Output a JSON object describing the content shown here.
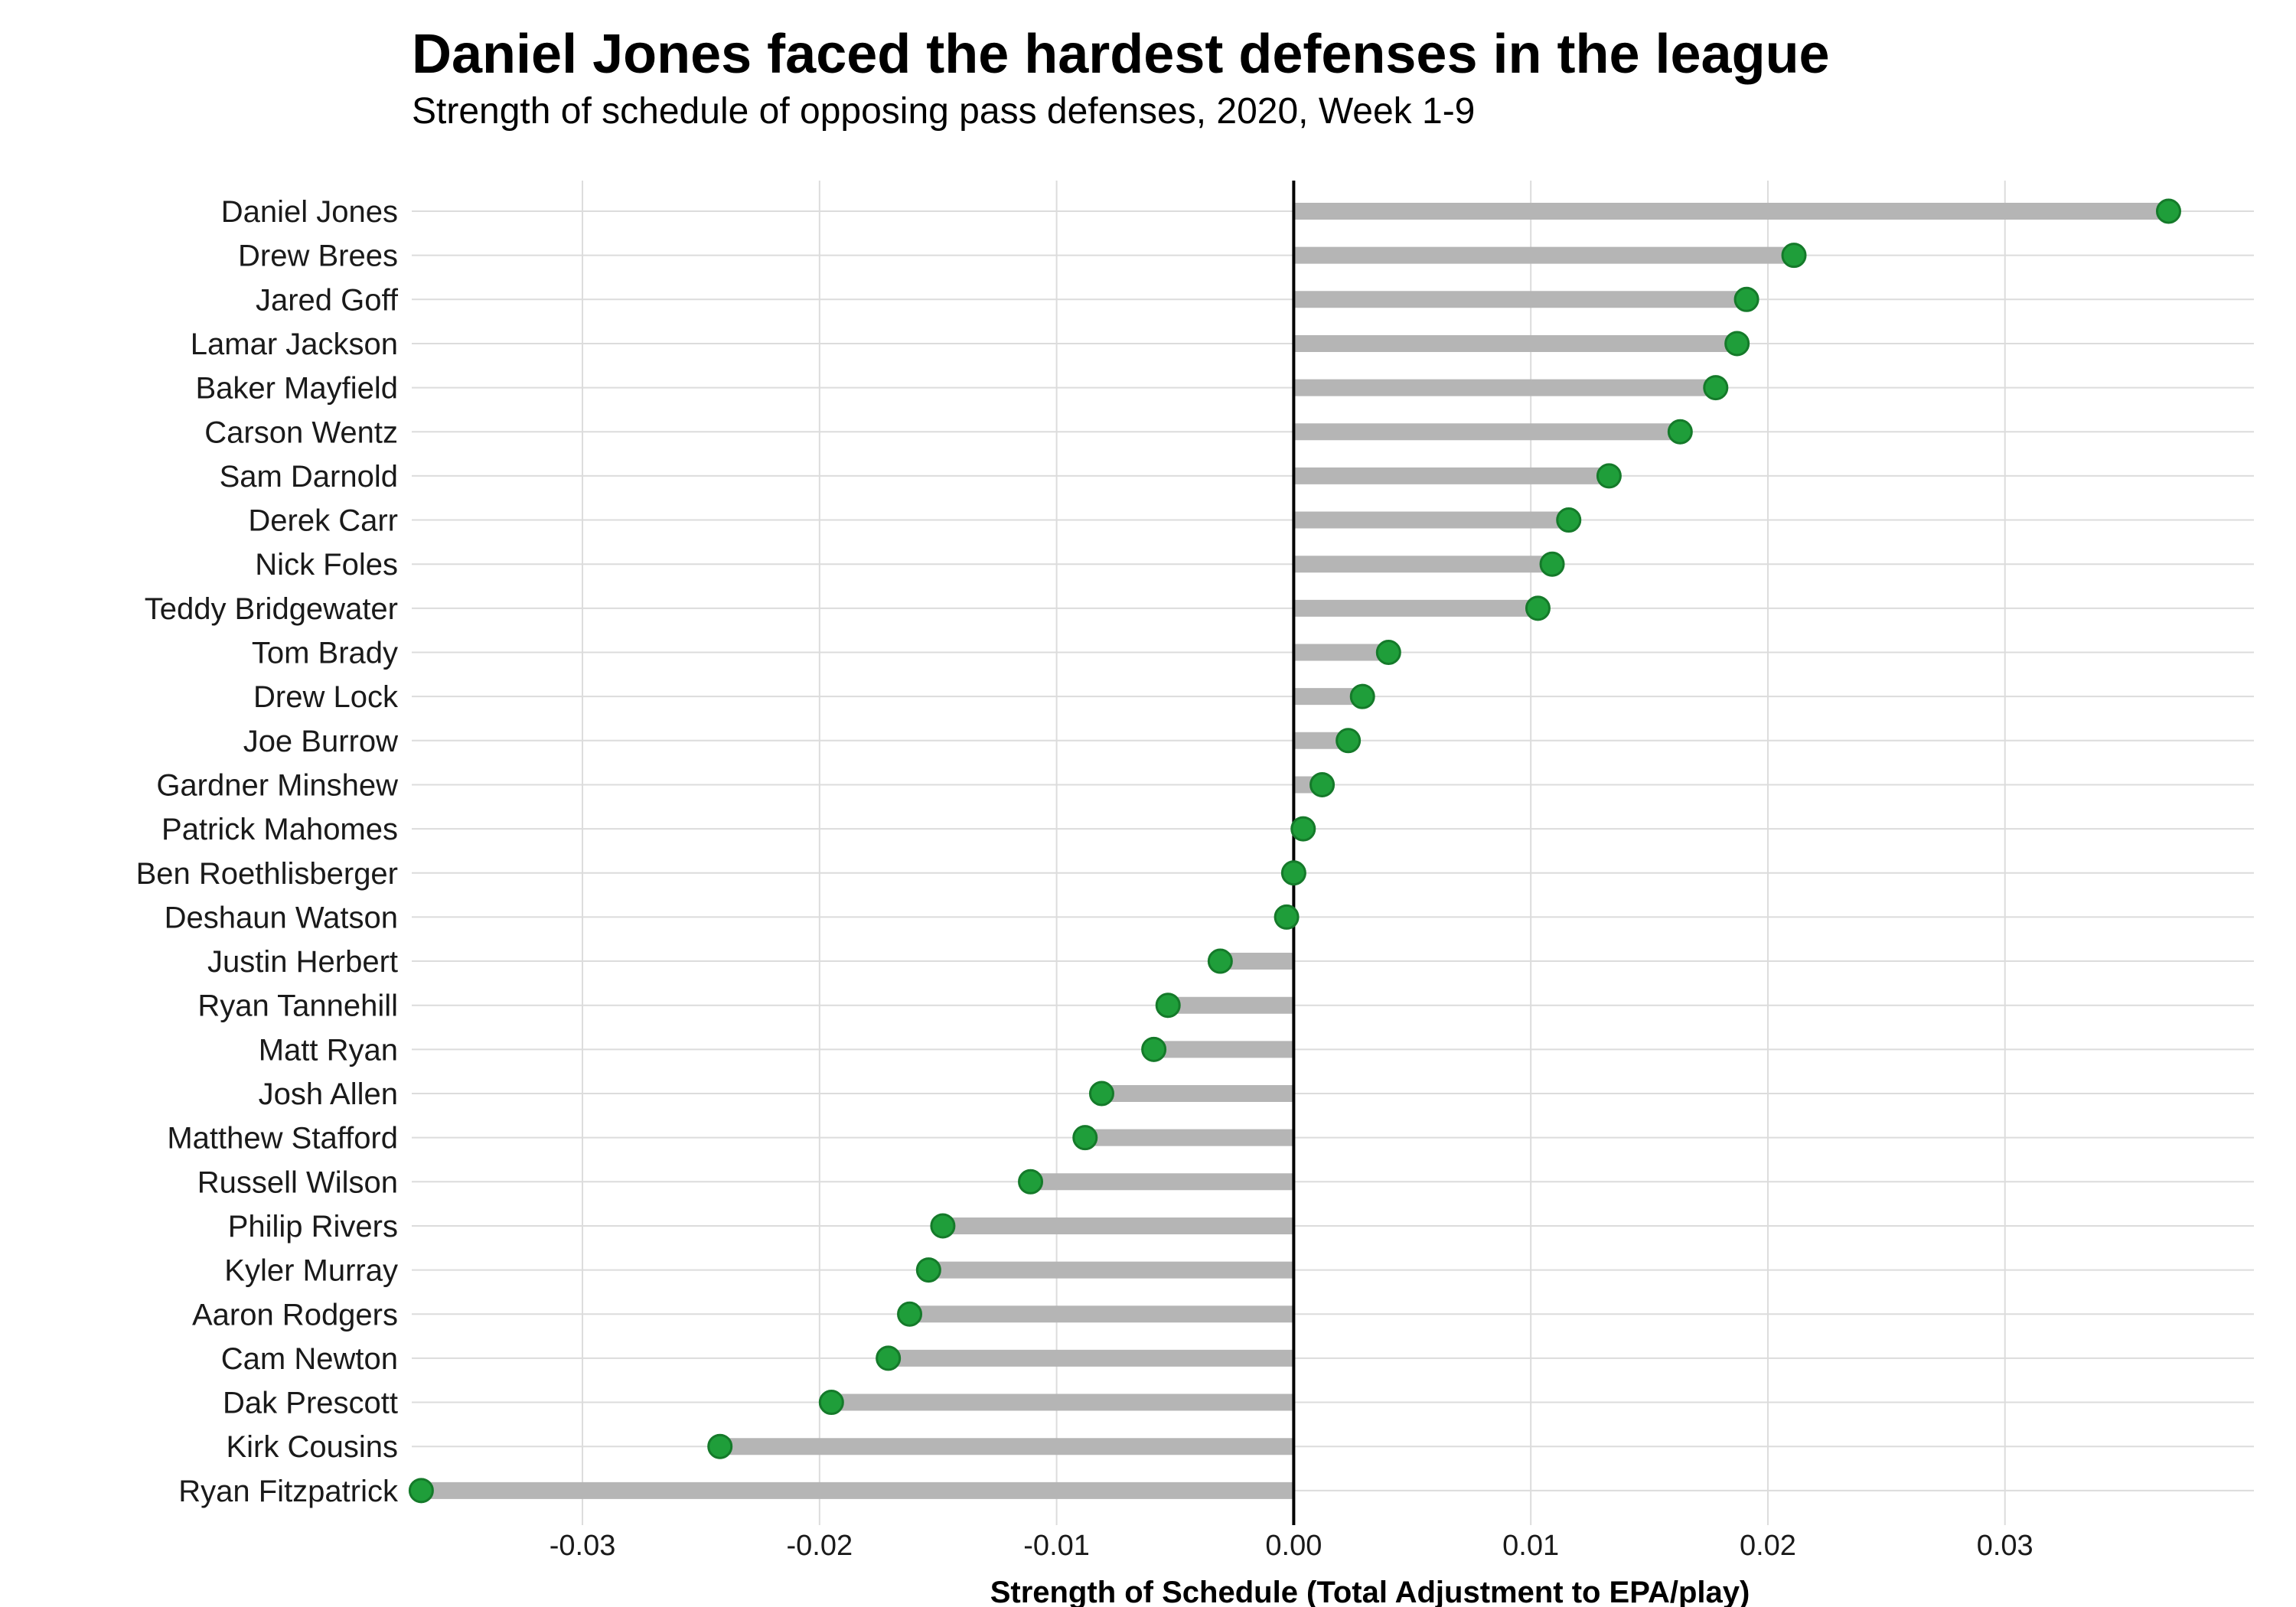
{
  "chart_data": {
    "type": "lollipop",
    "title": "Daniel Jones faced the hardest defenses in the league",
    "subtitle": "Strength of schedule of opposing pass defenses, 2020, Week 1-9",
    "xlabel": "Strength of Schedule (Total Adjustment to EPA/play)",
    "ylabel": "",
    "xlim": [
      -0.0372,
      0.0405
    ],
    "xticks": [
      "-0.03",
      "-0.02",
      "-0.01",
      "0.00",
      "0.01",
      "0.02",
      "0.03"
    ],
    "grid": true,
    "colors": {
      "point": "#1f9e3a",
      "point_edge": "#157a2a",
      "stem": "#b5b5b5",
      "grid": "#dcdcdc",
      "zero_line": "#000000"
    },
    "categories": [
      "Daniel Jones",
      "Drew Brees",
      "Jared Goff",
      "Lamar Jackson",
      "Baker Mayfield",
      "Carson Wentz",
      "Sam Darnold",
      "Derek Carr",
      "Nick Foles",
      "Teddy Bridgewater",
      "Tom Brady",
      "Drew Lock",
      "Joe Burrow",
      "Gardner Minshew",
      "Patrick Mahomes",
      "Ben Roethlisberger",
      "Deshaun Watson",
      "Justin Herbert",
      "Ryan Tannehill",
      "Matt Ryan",
      "Josh Allen",
      "Matthew Stafford",
      "Russell Wilson",
      "Philip Rivers",
      "Kyler Murray",
      "Aaron Rodgers",
      "Cam Newton",
      "Dak Prescott",
      "Kirk Cousins",
      "Ryan Fitzpatrick"
    ],
    "values": [
      0.0369,
      0.0211,
      0.0191,
      0.0187,
      0.0178,
      0.0163,
      0.0133,
      0.0116,
      0.0109,
      0.0103,
      0.004,
      0.0029,
      0.0023,
      0.0012,
      0.0004,
      0.0,
      -0.0003,
      -0.0031,
      -0.0053,
      -0.0059,
      -0.0081,
      -0.0088,
      -0.0111,
      -0.0148,
      -0.0154,
      -0.0162,
      -0.0171,
      -0.0195,
      -0.0242,
      -0.0368
    ]
  }
}
